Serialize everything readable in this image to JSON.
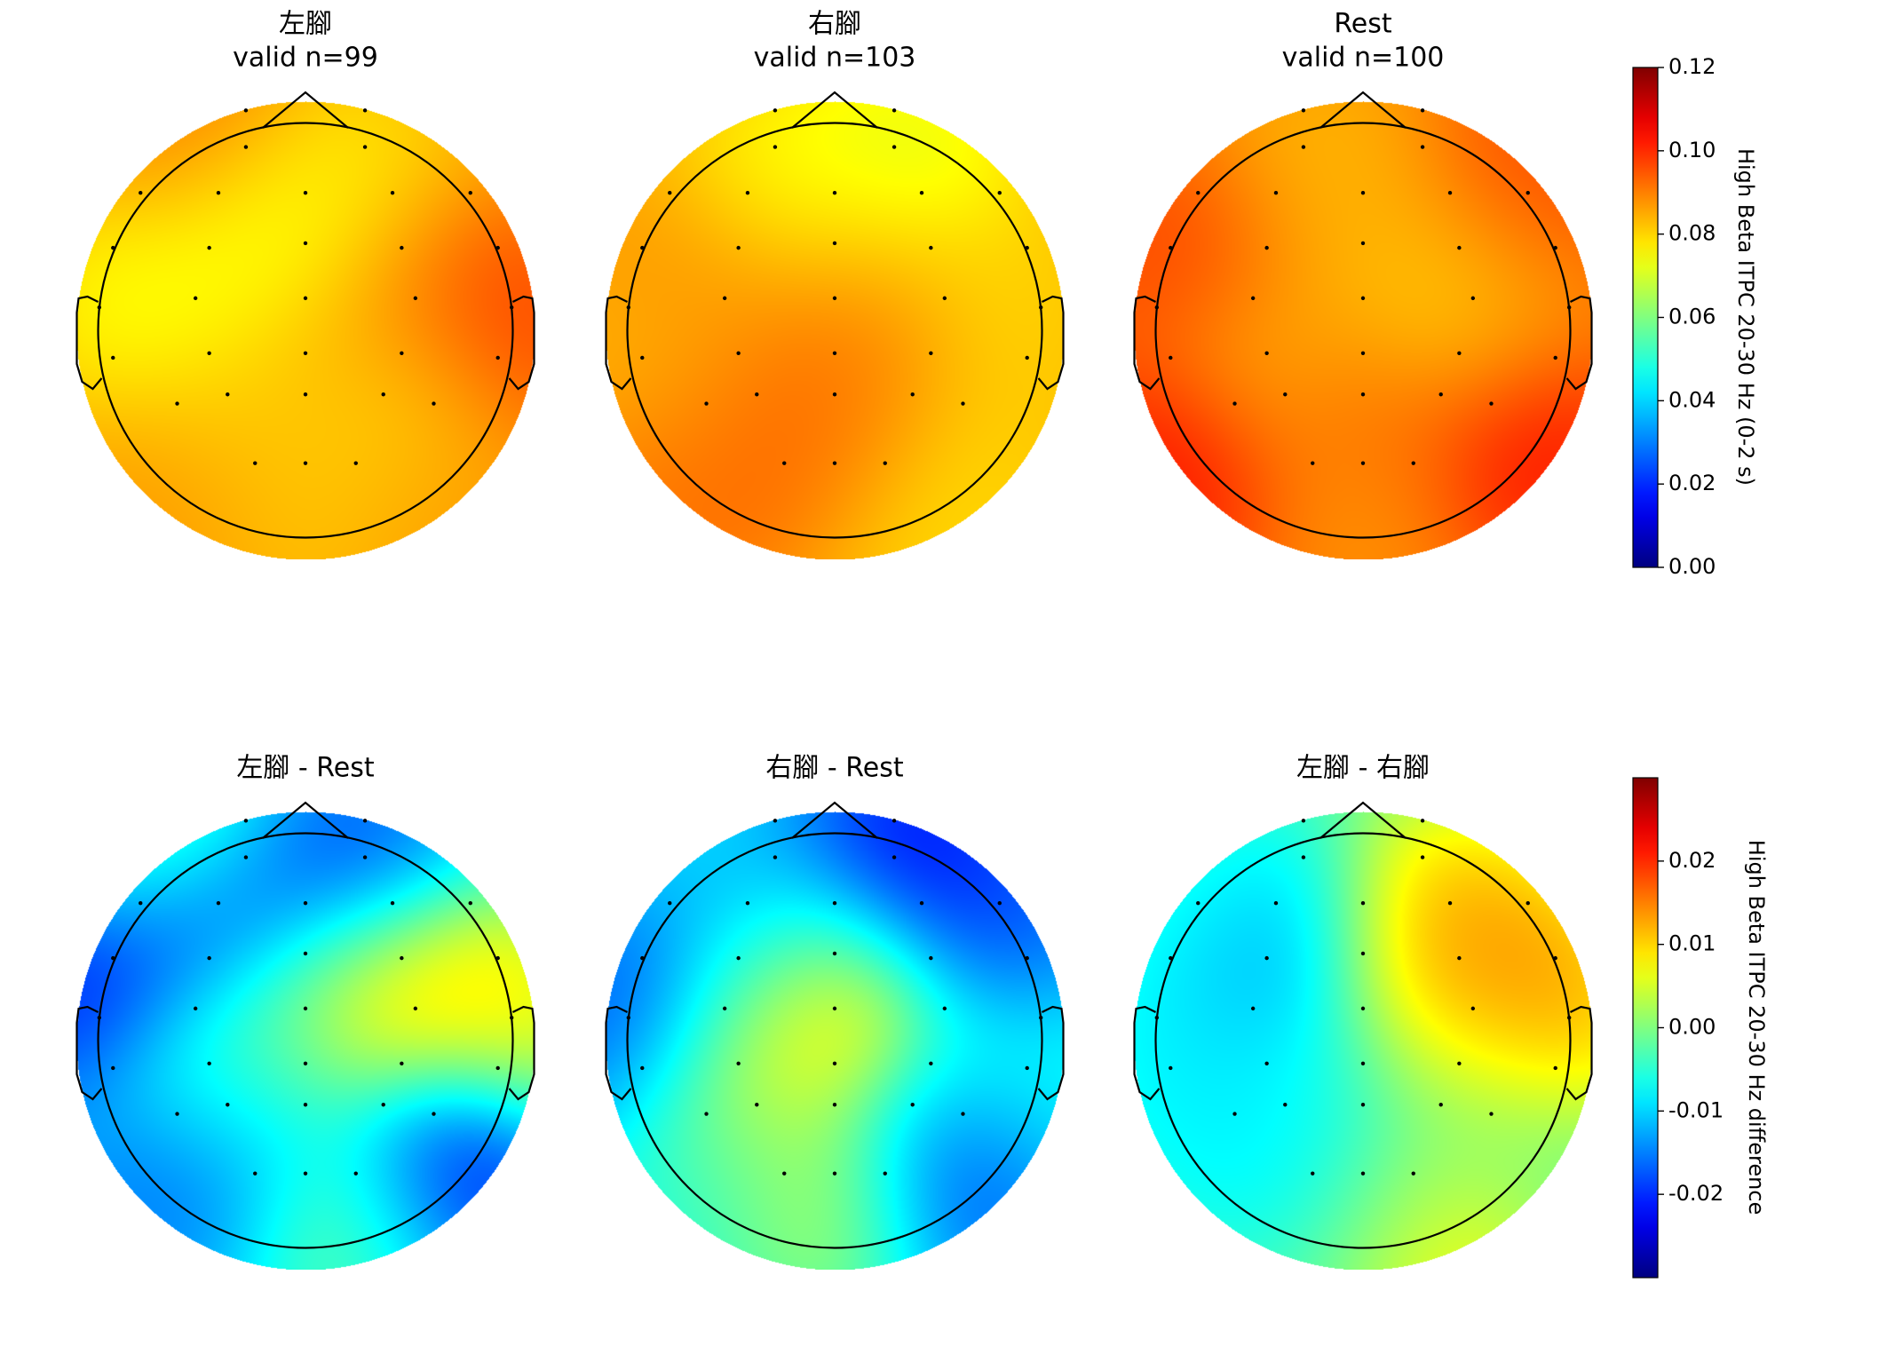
{
  "chart_data": [
    {
      "type": "heatmap",
      "kind": "eeg-topomap",
      "title_lines": [
        "左腳",
        "valid n=99"
      ],
      "colormap": "jet",
      "clim": [
        0.0,
        0.12
      ],
      "colorbar_label": "High Beta ITPC 20-30 Hz (0-2 s)",
      "colorbar_ticks": [
        "0.12",
        "0.10",
        "0.08",
        "0.06",
        "0.04",
        "0.02",
        "0.00"
      ],
      "blobs": [
        {
          "x": 0.3,
          "y": 0.12,
          "v": 0.095
        },
        {
          "x": 0.45,
          "y": 0.28,
          "v": 0.065
        },
        {
          "x": 0.37,
          "y": 0.38,
          "v": 0.07
        },
        {
          "x": 0.6,
          "y": 0.2,
          "v": 0.075
        },
        {
          "x": 0.7,
          "y": 0.4,
          "v": 0.095
        },
        {
          "x": 0.9,
          "y": 0.5,
          "v": 0.105
        },
        {
          "x": 0.15,
          "y": 0.45,
          "v": 0.07
        },
        {
          "x": 0.5,
          "y": 0.55,
          "v": 0.09
        },
        {
          "x": 0.35,
          "y": 0.65,
          "v": 0.075
        },
        {
          "x": 0.7,
          "y": 0.65,
          "v": 0.07
        },
        {
          "x": 0.5,
          "y": 0.85,
          "v": 0.08
        },
        {
          "x": 0.75,
          "y": 0.8,
          "v": 0.09
        },
        {
          "x": 0.25,
          "y": 0.8,
          "v": 0.09
        }
      ],
      "base": 0.085
    },
    {
      "type": "heatmap",
      "kind": "eeg-topomap",
      "title_lines": [
        "右腳",
        "valid n=103"
      ],
      "colormap": "jet",
      "clim": [
        0.0,
        0.12
      ],
      "blobs": [
        {
          "x": 0.4,
          "y": 0.2,
          "v": 0.07
        },
        {
          "x": 0.65,
          "y": 0.15,
          "v": 0.065
        },
        {
          "x": 0.55,
          "y": 0.4,
          "v": 0.09
        },
        {
          "x": 0.2,
          "y": 0.4,
          "v": 0.09
        },
        {
          "x": 0.85,
          "y": 0.45,
          "v": 0.078
        },
        {
          "x": 0.5,
          "y": 0.65,
          "v": 0.09
        },
        {
          "x": 0.15,
          "y": 0.6,
          "v": 0.08
        },
        {
          "x": 0.3,
          "y": 0.7,
          "v": 0.095
        },
        {
          "x": 0.5,
          "y": 0.75,
          "v": 0.1
        },
        {
          "x": 0.65,
          "y": 0.85,
          "v": 0.072
        },
        {
          "x": 0.85,
          "y": 0.8,
          "v": 0.08
        },
        {
          "x": 0.15,
          "y": 0.85,
          "v": 0.095
        }
      ],
      "base": 0.085
    },
    {
      "type": "heatmap",
      "kind": "eeg-topomap",
      "title_lines": [
        "Rest",
        "valid n=100"
      ],
      "colormap": "jet",
      "clim": [
        0.0,
        0.12
      ],
      "blobs": [
        {
          "x": 0.4,
          "y": 0.15,
          "v": 0.08
        },
        {
          "x": 0.85,
          "y": 0.2,
          "v": 0.1
        },
        {
          "x": 0.15,
          "y": 0.35,
          "v": 0.102
        },
        {
          "x": 0.5,
          "y": 0.3,
          "v": 0.085
        },
        {
          "x": 0.65,
          "y": 0.45,
          "v": 0.072
        },
        {
          "x": 0.3,
          "y": 0.55,
          "v": 0.078
        },
        {
          "x": 0.5,
          "y": 0.65,
          "v": 0.098
        },
        {
          "x": 0.1,
          "y": 0.8,
          "v": 0.11
        },
        {
          "x": 0.85,
          "y": 0.75,
          "v": 0.11
        },
        {
          "x": 0.5,
          "y": 0.85,
          "v": 0.085
        },
        {
          "x": 0.8,
          "y": 0.45,
          "v": 0.085
        }
      ],
      "base": 0.09
    },
    {
      "type": "heatmap",
      "kind": "eeg-topomap",
      "title_lines": [
        "左腳 - Rest"
      ],
      "colormap": "jet",
      "clim": [
        -0.03,
        0.03
      ],
      "colorbar_label": "High Beta ITPC 20-30 Hz difference",
      "colorbar_ticks": [
        "0.02",
        "0.01",
        "0.00",
        "-0.01",
        "-0.02"
      ],
      "blobs": [
        {
          "x": 0.08,
          "y": 0.4,
          "v": -0.03
        },
        {
          "x": 0.3,
          "y": 0.25,
          "v": -0.027
        },
        {
          "x": 0.6,
          "y": 0.15,
          "v": -0.025
        },
        {
          "x": 0.7,
          "y": 0.4,
          "v": 0.022
        },
        {
          "x": 0.95,
          "y": 0.45,
          "v": 0.015
        },
        {
          "x": 0.3,
          "y": 0.55,
          "v": 0.01
        },
        {
          "x": 0.35,
          "y": 0.65,
          "v": -0.02
        },
        {
          "x": 0.8,
          "y": 0.75,
          "v": -0.033
        },
        {
          "x": 0.6,
          "y": 0.85,
          "v": 0.005
        },
        {
          "x": 0.5,
          "y": 0.45,
          "v": 0.005
        },
        {
          "x": 0.2,
          "y": 0.8,
          "v": -0.02
        },
        {
          "x": 0.2,
          "y": 0.1,
          "v": 0.005
        }
      ],
      "base": -0.008
    },
    {
      "type": "heatmap",
      "kind": "eeg-topomap",
      "title_lines": [
        "右腳 - Rest"
      ],
      "colormap": "jet",
      "clim": [
        -0.03,
        0.03
      ],
      "blobs": [
        {
          "x": 0.65,
          "y": 0.1,
          "v": -0.03
        },
        {
          "x": 0.85,
          "y": 0.25,
          "v": -0.022
        },
        {
          "x": 0.08,
          "y": 0.45,
          "v": -0.025
        },
        {
          "x": 0.5,
          "y": 0.4,
          "v": 0.018
        },
        {
          "x": 0.3,
          "y": 0.55,
          "v": 0.012
        },
        {
          "x": 0.35,
          "y": 0.25,
          "v": -0.015
        },
        {
          "x": 0.75,
          "y": 0.8,
          "v": -0.027
        },
        {
          "x": 0.5,
          "y": 0.85,
          "v": 0.01
        },
        {
          "x": 0.25,
          "y": 0.8,
          "v": -0.005
        },
        {
          "x": 0.85,
          "y": 0.6,
          "v": -0.005
        }
      ],
      "base": -0.007
    },
    {
      "type": "heatmap",
      "kind": "eeg-topomap",
      "title_lines": [
        "左腳 - 右腳"
      ],
      "colormap": "jet",
      "clim": [
        -0.03,
        0.03
      ],
      "blobs": [
        {
          "x": 0.3,
          "y": 0.3,
          "v": -0.02
        },
        {
          "x": 0.2,
          "y": 0.2,
          "v": -0.005
        },
        {
          "x": 0.65,
          "y": 0.25,
          "v": 0.015
        },
        {
          "x": 0.75,
          "y": 0.35,
          "v": 0.02
        },
        {
          "x": 0.9,
          "y": 0.45,
          "v": 0.018
        },
        {
          "x": 0.7,
          "y": 0.55,
          "v": 0.005
        },
        {
          "x": 0.4,
          "y": 0.6,
          "v": -0.008
        },
        {
          "x": 0.2,
          "y": 0.7,
          "v": -0.01
        },
        {
          "x": 0.55,
          "y": 0.85,
          "v": -0.015
        },
        {
          "x": 0.65,
          "y": 0.9,
          "v": 0.025
        },
        {
          "x": 0.8,
          "y": 0.75,
          "v": -0.005
        },
        {
          "x": 0.1,
          "y": 0.5,
          "v": -0.01
        }
      ],
      "base": -0.002
    }
  ],
  "sensors": [
    [
      0.37,
      0.02
    ],
    [
      0.63,
      0.02
    ],
    [
      0.37,
      0.1
    ],
    [
      0.63,
      0.1
    ],
    [
      0.14,
      0.2
    ],
    [
      0.31,
      0.2
    ],
    [
      0.5,
      0.2
    ],
    [
      0.69,
      0.2
    ],
    [
      0.86,
      0.2
    ],
    [
      0.08,
      0.32
    ],
    [
      0.29,
      0.32
    ],
    [
      0.5,
      0.31
    ],
    [
      0.71,
      0.32
    ],
    [
      0.92,
      0.32
    ],
    [
      0.05,
      0.45
    ],
    [
      0.26,
      0.43
    ],
    [
      0.5,
      0.43
    ],
    [
      0.74,
      0.43
    ],
    [
      0.95,
      0.45
    ],
    [
      0.08,
      0.56
    ],
    [
      0.29,
      0.55
    ],
    [
      0.5,
      0.55
    ],
    [
      0.71,
      0.55
    ],
    [
      0.92,
      0.56
    ],
    [
      0.22,
      0.66
    ],
    [
      0.33,
      0.64
    ],
    [
      0.5,
      0.64
    ],
    [
      0.67,
      0.64
    ],
    [
      0.78,
      0.66
    ],
    [
      0.39,
      0.79
    ],
    [
      0.5,
      0.79
    ],
    [
      0.61,
      0.79
    ]
  ]
}
